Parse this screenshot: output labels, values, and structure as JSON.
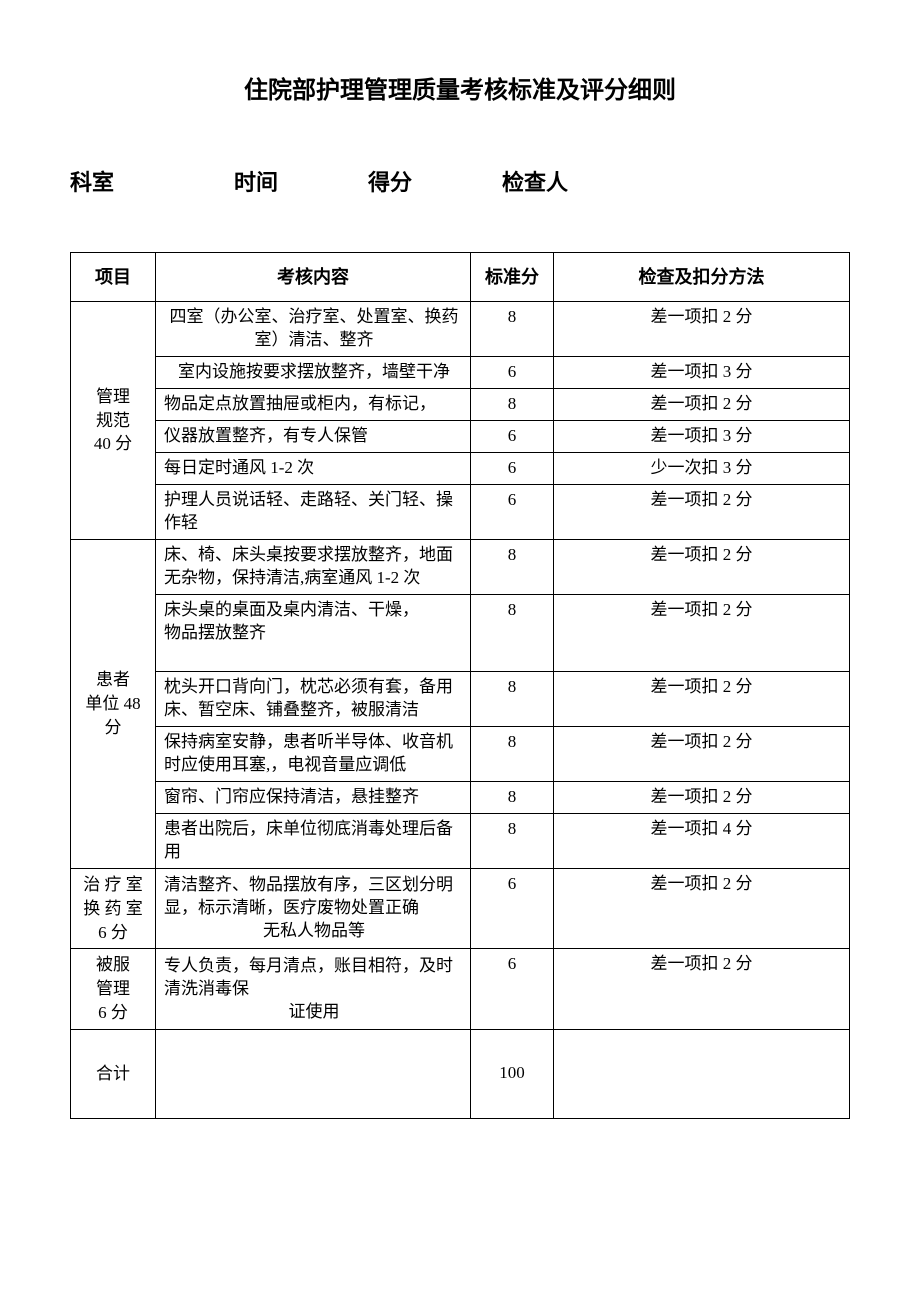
{
  "title": "住院部护理管理质量考核标准及评分细则",
  "info": {
    "dept_label": "科室",
    "time_label": "时间",
    "score_label": "得分",
    "inspector_label": "检查人"
  },
  "headers": {
    "category": "项目",
    "content": "考核内容",
    "score": "标准分",
    "method": "检查及扣分方法"
  },
  "sections": [
    {
      "category": "管理\n规范\n40 分",
      "rows": [
        {
          "content": "四室（办公室、治疗室、处置室、换药室）清洁、整齐",
          "score": "8",
          "method": "差一项扣 2 分",
          "align": "center"
        },
        {
          "content": "室内设施按要求摆放整齐，墙壁干净",
          "score": "6",
          "method": "差一项扣 3 分",
          "align": "center"
        },
        {
          "content": "物品定点放置抽屉或柜内，有标记，",
          "score": "8",
          "method": "差一项扣 2 分",
          "align": "left"
        },
        {
          "content": "仪器放置整齐，有专人保管",
          "score": "6",
          "method": "差一项扣 3 分",
          "align": "left"
        },
        {
          "content": "每日定时通风 1-2 次",
          "score": "6",
          "method": "少一次扣 3 分",
          "align": "left"
        },
        {
          "content": "护理人员说话轻、走路轻、关门轻、操作轻",
          "score": "6",
          "method": "差一项扣 2 分",
          "align": "left"
        }
      ]
    },
    {
      "category": "患者\n单位 48\n分",
      "rows": [
        {
          "content": "床、椅、床头桌按要求摆放整齐，地面无杂物，保持清洁,病室通风 1-2 次",
          "score": "8",
          "method": "差一项扣 2 分",
          "align": "left"
        },
        {
          "content": "床头桌的桌面及桌内清洁、干燥，\n物品摆放整齐\n　",
          "score": "8",
          "method": "差一项扣 2 分",
          "align": "left"
        },
        {
          "content": "枕头开口背向门，枕芯必须有套，备用床、暂空床、铺叠整齐，被服清洁",
          "score": "8",
          "method": "差一项扣 2 分",
          "align": "left"
        },
        {
          "content": "保持病室安静，患者听半导体、收音机时应使用耳塞,，电视音量应调低",
          "score": "8",
          "method": "差一项扣 2 分",
          "align": "left"
        },
        {
          "content": "窗帘、门帘应保持清洁，悬挂整齐",
          "score": "8",
          "method": "差一项扣 2 分",
          "align": "left"
        },
        {
          "content": "患者出院后，床单位彻底消毒处理后备用",
          "score": "8",
          "method": "差一项扣 4 分",
          "align": "left"
        }
      ]
    },
    {
      "category": "治 疗 室\n换 药 室\n6 分",
      "rows": [
        {
          "content": "清洁整齐、物品摆放有序，三区划分明显，标示清晰，医疗废物处置正确\n无私人物品等",
          "score": "6",
          "method": "差一项扣 2 分",
          "align": "left",
          "lastcenter": true
        }
      ]
    },
    {
      "category": "被服\n管理\n6 分",
      "rows": [
        {
          "content": "专人负责，每月清点，账目相符，及时清洗消毒保\n证使用",
          "score": "6",
          "method": "差一项扣 2 分",
          "align": "left",
          "midcenter": true
        }
      ]
    }
  ],
  "total": {
    "label": "合计",
    "score": "100"
  }
}
